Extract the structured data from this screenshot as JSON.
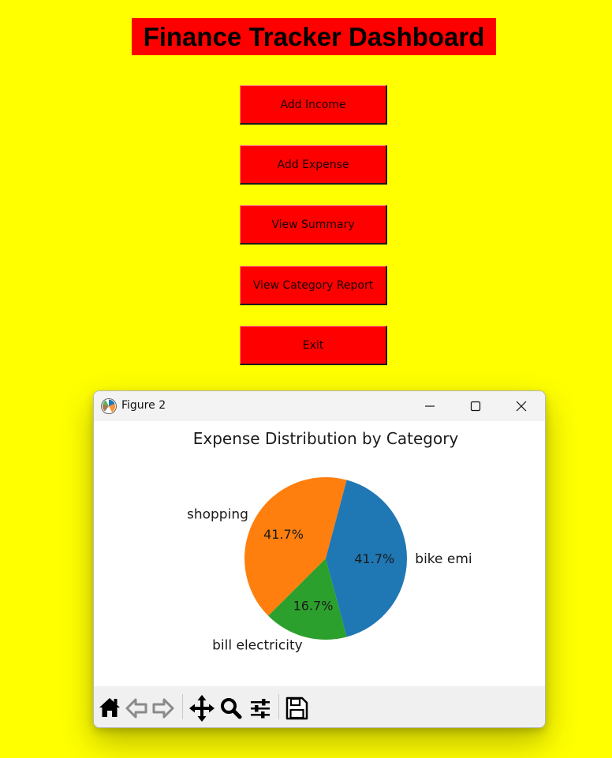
{
  "app": {
    "title": "Finance Tracker Dashboard",
    "buttons": [
      {
        "label": "Add Income"
      },
      {
        "label": "Add Expense"
      },
      {
        "label": "View Summary"
      },
      {
        "label": "View Category Report"
      },
      {
        "label": "Exit"
      }
    ]
  },
  "figure_window": {
    "title": "Figure 2",
    "controls": [
      "minimize-icon",
      "maximize-icon",
      "close-icon"
    ],
    "toolbar": [
      "home-icon",
      "back-icon",
      "forward-icon",
      "pan-icon",
      "zoom-icon",
      "configure-subplots-icon",
      "save-icon"
    ]
  },
  "chart_data": {
    "type": "pie",
    "title": "Expense Distribution by Category",
    "categories": [
      "shopping",
      "bill electricity",
      "bike emi"
    ],
    "values": [
      41.7,
      16.7,
      41.7
    ],
    "labels": [
      "41.7%",
      "16.7%",
      "41.7%"
    ],
    "colors": [
      "#ff7f0e",
      "#2ca02c",
      "#1f77b4"
    ],
    "legend": "none"
  },
  "colors": {
    "background": "#ffff00",
    "button": "#ff0000",
    "title_bg": "#ff0000"
  }
}
